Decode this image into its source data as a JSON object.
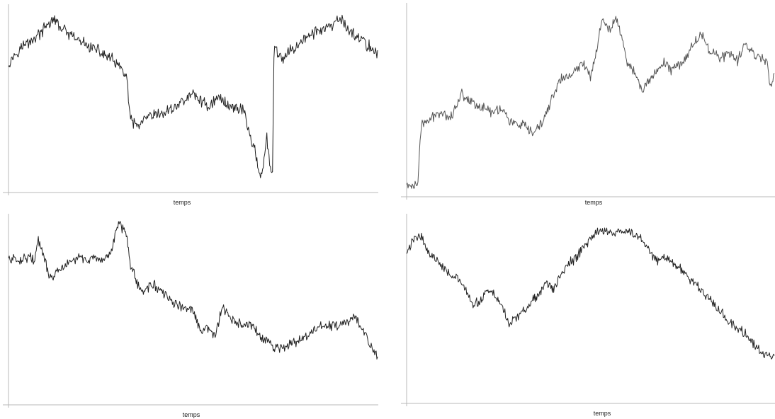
{
  "chart_data": [
    {
      "type": "line",
      "xlabel": "temps",
      "ylabel": "",
      "xlim": [
        0,
        100
      ],
      "ylim": [
        0,
        100
      ],
      "grid": false,
      "series": [
        {
          "color": "#222222",
          "noise": 2.6,
          "x": [
            0,
            3,
            6,
            9,
            12,
            16,
            20,
            24,
            28,
            32,
            33,
            35,
            38,
            42,
            46,
            50,
            54,
            57,
            60,
            64,
            65,
            67,
            68,
            69,
            70,
            71,
            71.5,
            72,
            73,
            74,
            76,
            80,
            84,
            88,
            90,
            92,
            95,
            97,
            99,
            100
          ],
          "y": [
            70,
            78,
            82,
            87,
            94,
            86,
            81,
            77,
            72,
            63,
            38,
            35,
            40,
            42,
            47,
            53,
            46,
            51,
            46,
            44,
            32,
            20,
            8,
            12,
            28,
            10,
            6,
            82,
            75,
            71,
            76,
            83,
            88,
            90,
            95,
            88,
            84,
            80,
            77,
            76
          ]
        }
      ]
    },
    {
      "type": "line",
      "xlabel": "temps",
      "ylabel": "",
      "xlim": [
        0,
        100
      ],
      "ylim": [
        0,
        100
      ],
      "grid": false,
      "series": [
        {
          "color": "#555555",
          "noise": 2.2,
          "x": [
            0,
            2,
            3,
            4,
            6,
            9,
            12,
            15,
            18,
            20,
            23,
            26,
            28,
            30,
            32,
            34,
            36,
            38,
            40,
            42,
            45,
            48,
            50,
            51,
            53,
            55,
            57,
            58,
            60,
            62,
            64,
            66,
            68,
            70,
            72,
            75,
            78,
            80,
            82,
            85,
            88,
            90,
            92,
            95,
            97,
            98,
            99,
            100
          ],
          "y": [
            5,
            4,
            6,
            38,
            40,
            45,
            42,
            55,
            50,
            48,
            45,
            47,
            40,
            38,
            37,
            33,
            36,
            44,
            55,
            63,
            65,
            72,
            65,
            72,
            95,
            90,
            97,
            90,
            72,
            67,
            56,
            62,
            68,
            72,
            68,
            72,
            82,
            88,
            80,
            75,
            76,
            73,
            82,
            76,
            74,
            73,
            58,
            68
          ]
        }
      ]
    },
    {
      "type": "line",
      "xlabel": "temps",
      "ylabel": "",
      "xlim": [
        0,
        100
      ],
      "ylim": [
        0,
        100
      ],
      "grid": false,
      "series": [
        {
          "color": "#222222",
          "noise": 2.4,
          "x": [
            0,
            3,
            6,
            7,
            8,
            10,
            11,
            13,
            15,
            17,
            19,
            21,
            23,
            25,
            26,
            28,
            29,
            30,
            31,
            32,
            33,
            34,
            35,
            37,
            39,
            42,
            46,
            50,
            52,
            54,
            56,
            58,
            60,
            62,
            64,
            66,
            68,
            70,
            72,
            74,
            76,
            80,
            84,
            88,
            90,
            92,
            94,
            96,
            98,
            100
          ],
          "y": [
            75,
            74,
            77,
            72,
            87,
            73,
            63,
            66,
            70,
            73,
            76,
            74,
            76,
            72,
            73,
            80,
            92,
            97,
            93,
            91,
            72,
            67,
            58,
            55,
            60,
            53,
            46,
            43,
            30,
            32,
            28,
            45,
            38,
            36,
            33,
            35,
            27,
            24,
            21,
            20,
            22,
            26,
            33,
            34,
            34,
            36,
            39,
            32,
            22,
            15
          ]
        }
      ]
    },
    {
      "type": "line",
      "xlabel": "temps",
      "ylabel": "",
      "xlim": [
        0,
        100
      ],
      "ylim": [
        0,
        100
      ],
      "grid": false,
      "series": [
        {
          "color": "#222222",
          "noise": 2.4,
          "x": [
            0,
            2,
            4,
            6,
            8,
            10,
            12,
            14,
            16,
            18,
            20,
            22,
            24,
            26,
            28,
            30,
            32,
            34,
            36,
            38,
            40,
            42,
            44,
            46,
            48,
            50,
            52,
            54,
            56,
            58,
            60,
            62,
            64,
            66,
            68,
            70,
            72,
            74,
            76,
            78,
            80,
            82,
            84,
            86,
            88,
            90,
            92,
            94,
            96,
            98,
            100
          ],
          "y": [
            78,
            88,
            90,
            78,
            75,
            70,
            65,
            62,
            55,
            45,
            48,
            55,
            52,
            45,
            33,
            38,
            42,
            48,
            52,
            60,
            55,
            65,
            72,
            75,
            82,
            88,
            92,
            94,
            90,
            92,
            93,
            90,
            88,
            80,
            74,
            76,
            73,
            70,
            65,
            60,
            55,
            50,
            45,
            40,
            35,
            30,
            28,
            22,
            16,
            12,
            14
          ]
        }
      ]
    }
  ]
}
